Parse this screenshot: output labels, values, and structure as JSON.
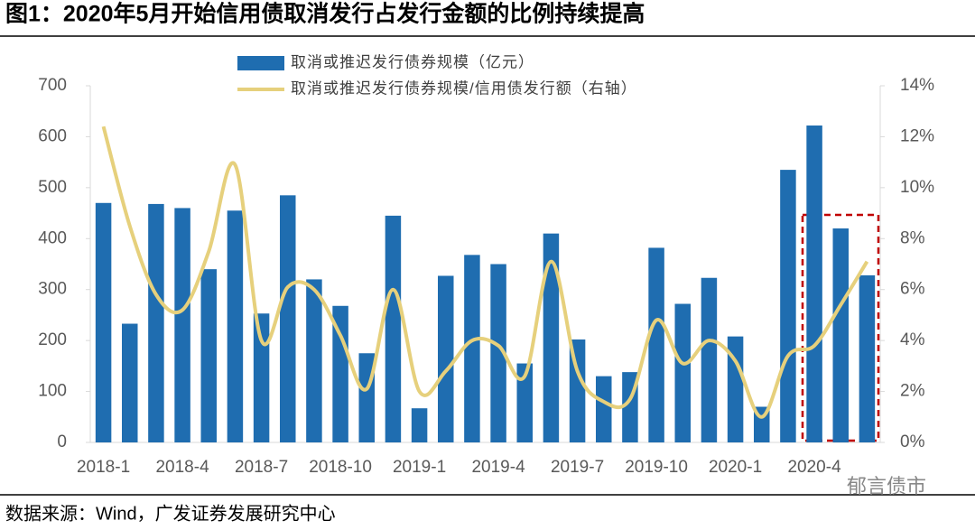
{
  "chart_data": {
    "type": "bar-line",
    "title": "图1：2020年5月开始信用债取消发行占发行金额的比例持续提高",
    "source": "数据来源：Wind，广发证券发展研究中心",
    "watermark": "郁言债市",
    "categories": [
      "2018-1",
      null,
      null,
      "2018-4",
      null,
      null,
      "2018-7",
      null,
      null,
      "2018-10",
      null,
      null,
      "2019-1",
      null,
      null,
      "2019-4",
      null,
      null,
      "2019-7",
      null,
      null,
      "2019-10",
      null,
      null,
      "2020-1",
      null,
      null,
      "2020-4",
      null,
      null
    ],
    "series": [
      {
        "name": "取消或推迟发行债券规模（亿元）",
        "type": "bar",
        "color": "#1f6db0",
        "values": [
          470,
          233,
          468,
          460,
          340,
          455,
          253,
          485,
          320,
          268,
          175,
          445,
          67,
          327,
          368,
          350,
          155,
          410,
          202,
          130,
          138,
          382,
          272,
          323,
          208,
          70,
          535,
          622,
          420,
          328
        ]
      },
      {
        "name": "取消或推迟发行债券规模/信用债发行额（右轴）",
        "type": "line",
        "axis": "y2",
        "color": "#e6d07c",
        "values": [
          12.4,
          8.5,
          5.8,
          5.2,
          7.5,
          10.9,
          4.0,
          6.1,
          6.0,
          4.2,
          2.1,
          6.0,
          2.0,
          2.8,
          4.0,
          3.8,
          2.6,
          7.1,
          2.8,
          1.6,
          1.7,
          4.8,
          3.1,
          4.0,
          3.2,
          1.0,
          3.4,
          3.8,
          5.4,
          7.1
        ]
      }
    ],
    "ylim": [
      0,
      700
    ],
    "yticks": [
      0,
      100,
      200,
      300,
      400,
      500,
      600,
      700
    ],
    "y2lim": [
      0,
      14
    ],
    "y2ticks": [
      {
        "value": 0,
        "label": "0%"
      },
      {
        "value": 2,
        "label": "2%"
      },
      {
        "value": 4,
        "label": "4%"
      },
      {
        "value": 6,
        "label": "6%"
      },
      {
        "value": 8,
        "label": "8%"
      },
      {
        "value": 10,
        "label": "10%"
      },
      {
        "value": 12,
        "label": "12%"
      },
      {
        "value": 14,
        "label": "14%"
      }
    ]
  }
}
